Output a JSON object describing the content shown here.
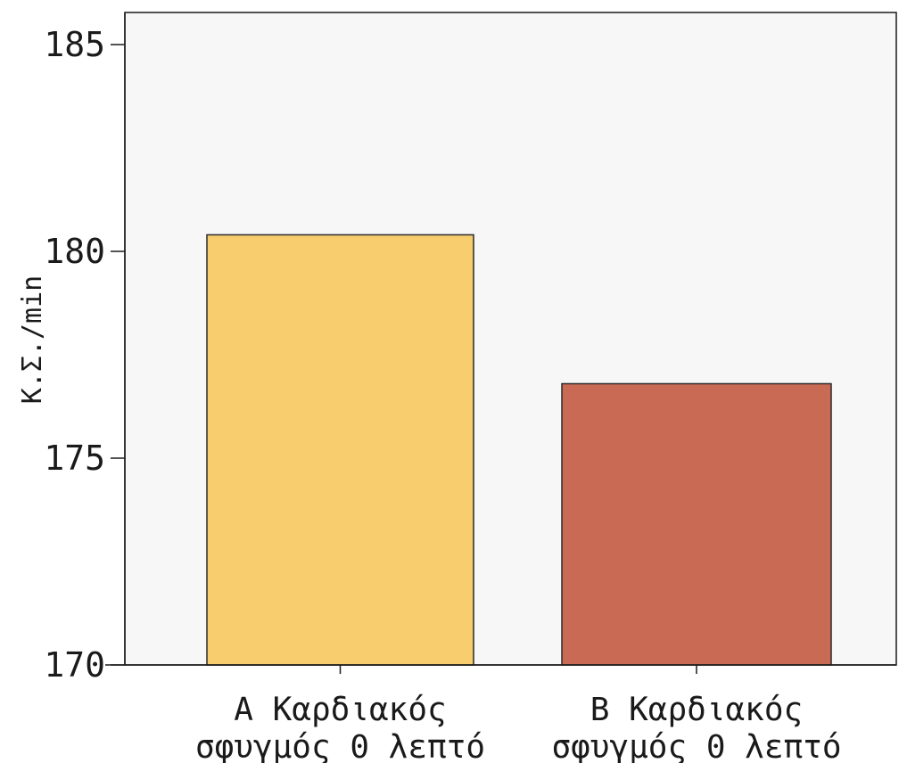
{
  "chart_data": {
    "type": "bar",
    "categories": [
      [
        "A Καρδιακός",
        "σφυγμός 0 λεπτό"
      ],
      [
        "B Καρδιακός",
        "σφυγμός 0 λεπτό"
      ]
    ],
    "values": [
      180.4,
      176.8
    ],
    "ylabel": "Κ.Σ./min",
    "ylim": [
      170,
      186
    ],
    "yticks": [
      170,
      175,
      180,
      185
    ],
    "bar_colors": [
      "#f7cd6e",
      "#c96a55"
    ],
    "plot_background": "#f7f7f7",
    "grid": false
  }
}
